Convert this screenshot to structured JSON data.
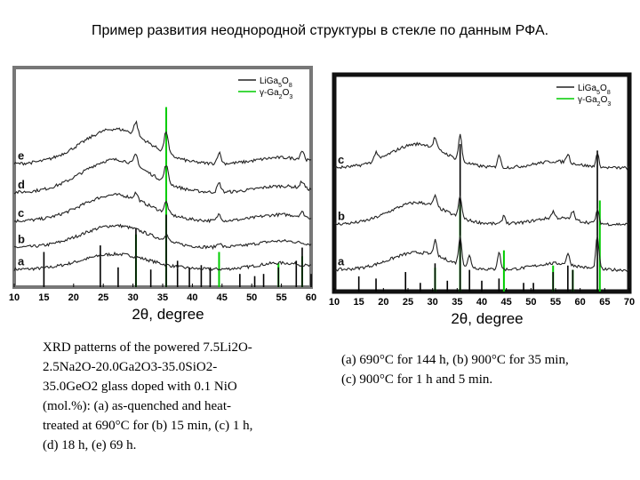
{
  "title": "Пример развития неоднородной структуры в стекле по данным РФА.",
  "colors": {
    "line": "#222222",
    "green": "#00cc00",
    "frame_left": "#777777",
    "frame_right": "#111111"
  },
  "charts": [
    {
      "type": "line",
      "xlabel": "2θ, degree",
      "xlim": [
        10,
        60
      ],
      "xticks": [
        10,
        15,
        20,
        25,
        30,
        35,
        40,
        45,
        50,
        55,
        60
      ],
      "legend_position": "top-right",
      "legend": [
        {
          "name": "LiGa5O8",
          "color": "#222222"
        },
        {
          "name": "γ-Ga2O3",
          "color": "#00cc00"
        }
      ],
      "curves": [
        {
          "name": "a",
          "offset": 0.08,
          "halo": 0.07,
          "peaks": []
        },
        {
          "name": "b",
          "offset": 0.18,
          "halo": 0.1,
          "peaks": [
            [
              35.6,
              0.03
            ],
            [
              44.5,
              0.02
            ]
          ]
        },
        {
          "name": "c",
          "offset": 0.3,
          "halo": 0.12,
          "peaks": [
            [
              30.5,
              0.03
            ],
            [
              35.6,
              0.05
            ],
            [
              44.5,
              0.03
            ],
            [
              58.5,
              0.02
            ]
          ]
        },
        {
          "name": "d",
          "offset": 0.43,
          "halo": 0.15,
          "peaks": [
            [
              30.5,
              0.05
            ],
            [
              35.6,
              0.08
            ],
            [
              44.5,
              0.04
            ],
            [
              58.5,
              0.03
            ],
            [
              63.5,
              0.02
            ]
          ]
        },
        {
          "name": "e",
          "offset": 0.56,
          "halo": 0.16,
          "peaks": [
            [
              30.5,
              0.06
            ],
            [
              35.6,
              0.1
            ],
            [
              44.5,
              0.05
            ],
            [
              58.5,
              0.04
            ]
          ]
        }
      ],
      "sticks_black": [
        [
          15,
          0.16
        ],
        [
          24.5,
          0.19
        ],
        [
          27.5,
          0.09
        ],
        [
          30.5,
          0.27
        ],
        [
          33,
          0.08
        ],
        [
          35.6,
          0.33
        ],
        [
          37.5,
          0.12
        ],
        [
          39.5,
          0.09
        ],
        [
          41.5,
          0.1
        ],
        [
          43,
          0.09
        ],
        [
          48,
          0.06
        ],
        [
          50.5,
          0.05
        ],
        [
          52,
          0.06
        ],
        [
          54.5,
          0.09
        ],
        [
          57.5,
          0.12
        ],
        [
          58.5,
          0.18
        ],
        [
          60,
          0.06
        ]
      ],
      "sticks_green": [
        [
          30.5,
          0.24
        ],
        [
          35.6,
          0.82
        ],
        [
          44.5,
          0.16
        ],
        [
          54.5,
          0.11
        ],
        [
          58.5,
          0.14
        ]
      ]
    },
    {
      "type": "line",
      "xlabel": "2θ, degree",
      "xlim": [
        10,
        70
      ],
      "xticks": [
        10,
        15,
        20,
        25,
        30,
        35,
        40,
        45,
        50,
        55,
        60,
        65,
        70
      ],
      "legend_position": "top-right",
      "legend": [
        {
          "name": "LiGa5O8",
          "color": "#222222"
        },
        {
          "name": "γ-Ga2O3",
          "color": "#00cc00"
        }
      ],
      "curves": [
        {
          "name": "a",
          "offset": 0.1,
          "halo": 0.08,
          "peaks": [
            [
              30.5,
              0.07
            ],
            [
              35.6,
              0.13
            ],
            [
              37.5,
              0.05
            ],
            [
              43.5,
              0.08
            ],
            [
              57.5,
              0.05
            ],
            [
              63.5,
              0.15
            ]
          ]
        },
        {
          "name": "b",
          "offset": 0.31,
          "halo": 0.1,
          "peaks": [
            [
              30.5,
              0.05
            ],
            [
              35.6,
              0.1
            ],
            [
              44.5,
              0.04
            ],
            [
              54.5,
              0.03
            ],
            [
              58.5,
              0.04
            ],
            [
              63.5,
              0.06
            ]
          ]
        },
        {
          "name": "c",
          "offset": 0.57,
          "halo": 0.11,
          "peaks": [
            [
              18.5,
              0.04
            ],
            [
              30.5,
              0.05
            ],
            [
              35.6,
              0.12
            ],
            [
              43.5,
              0.06
            ],
            [
              57.5,
              0.04
            ],
            [
              63.5,
              0.06
            ]
          ]
        }
      ],
      "sticks_black": [
        [
          15,
          0.07
        ],
        [
          18.5,
          0.06
        ],
        [
          24.5,
          0.09
        ],
        [
          27.5,
          0.04
        ],
        [
          30.5,
          0.13
        ],
        [
          33,
          0.05
        ],
        [
          35.6,
          0.68
        ],
        [
          37.5,
          0.1
        ],
        [
          40,
          0.05
        ],
        [
          43.5,
          0.06
        ],
        [
          48.5,
          0.04
        ],
        [
          50.5,
          0.04
        ],
        [
          54.5,
          0.09
        ],
        [
          57.5,
          0.12
        ],
        [
          58.5,
          0.1
        ],
        [
          63.5,
          0.65
        ]
      ],
      "sticks_green": [
        [
          30.5,
          0.11
        ],
        [
          35.6,
          0.4
        ],
        [
          44.5,
          0.19
        ],
        [
          54.5,
          0.12
        ],
        [
          58.5,
          0.1
        ],
        [
          64,
          0.42
        ]
      ]
    }
  ],
  "captions": {
    "left": "XRD patterns of the powered 7.5Li2O-\n2.5Na2O-20.0Ga2O3-35.0SiO2-\n35.0GeO2 glass doped with 0.1 NiO\n(mol.%): (a) as-quenched and heat-\ntreated at 690°C for (b) 15 min, (c) 1 h,\n(d) 18 h, (e) 69 h.",
    "right": "(a) 690°C for 144 h, (b) 900°C for 35 min,\n(c) 900°C for 1 h and 5 min."
  }
}
